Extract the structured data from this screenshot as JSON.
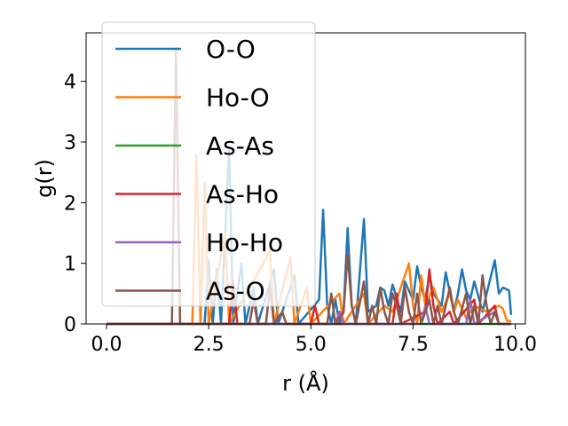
{
  "chart_data": {
    "type": "line",
    "title": "",
    "xlabel": "r (Å)",
    "ylabel": "g(r)",
    "xlim": [
      -0.5,
      10.25
    ],
    "ylim": [
      0,
      4.8
    ],
    "xticks": [
      0.0,
      2.5,
      5.0,
      7.5,
      10.0
    ],
    "xtick_labels": [
      "0.0",
      "2.5",
      "5.0",
      "7.5",
      "10.0"
    ],
    "yticks": [
      0,
      1,
      2,
      3,
      4
    ],
    "ytick_labels": [
      "0",
      "1",
      "2",
      "3",
      "4"
    ],
    "grid": false,
    "legend_position": "upper-left",
    "series": [
      {
        "name": "O-O",
        "color": "#1f77b4",
        "points": [
          [
            0.0,
            0
          ],
          [
            2.4,
            0
          ],
          [
            2.5,
            1.05
          ],
          [
            2.6,
            0
          ],
          [
            2.7,
            0.9
          ],
          [
            2.8,
            0
          ],
          [
            3.0,
            2.9
          ],
          [
            3.1,
            0
          ],
          [
            3.3,
            1.0
          ],
          [
            3.4,
            0
          ],
          [
            3.6,
            0.6
          ],
          [
            3.7,
            0
          ],
          [
            4.1,
            0.9
          ],
          [
            4.2,
            0
          ],
          [
            4.6,
            0.8
          ],
          [
            4.7,
            0
          ],
          [
            5.2,
            0.4
          ],
          [
            5.3,
            1.88
          ],
          [
            5.4,
            0.3
          ],
          [
            5.5,
            0
          ],
          [
            5.6,
            0.4
          ],
          [
            5.7,
            0
          ],
          [
            5.8,
            0.2
          ],
          [
            5.9,
            1.58
          ],
          [
            6.0,
            0.3
          ],
          [
            6.1,
            0
          ],
          [
            6.3,
            1.73
          ],
          [
            6.4,
            0.2
          ],
          [
            6.6,
            0.3
          ],
          [
            6.7,
            0.6
          ],
          [
            6.8,
            0.55
          ],
          [
            6.9,
            0.3
          ],
          [
            7.0,
            0.65
          ],
          [
            7.2,
            0.2
          ],
          [
            7.3,
            0.7
          ],
          [
            7.5,
            0.4
          ],
          [
            7.6,
            0.95
          ],
          [
            7.7,
            0.6
          ],
          [
            7.8,
            0.4
          ],
          [
            7.9,
            0.8
          ],
          [
            8.0,
            0.5
          ],
          [
            8.2,
            0.3
          ],
          [
            8.3,
            0.85
          ],
          [
            8.5,
            0.2
          ],
          [
            8.6,
            0.5
          ],
          [
            8.7,
            0.9
          ],
          [
            8.8,
            0.55
          ],
          [
            8.9,
            0.4
          ],
          [
            9.0,
            0.7
          ],
          [
            9.2,
            0.2
          ],
          [
            9.3,
            0.5
          ],
          [
            9.5,
            1.05
          ],
          [
            9.6,
            0.5
          ],
          [
            9.7,
            0.6
          ],
          [
            9.85,
            0.55
          ],
          [
            9.9,
            0.15
          ]
        ]
      },
      {
        "name": "Ho-O",
        "color": "#ff7f0e",
        "points": [
          [
            0.0,
            0
          ],
          [
            2.1,
            0
          ],
          [
            2.2,
            2.78
          ],
          [
            2.3,
            0
          ],
          [
            2.4,
            2.33
          ],
          [
            2.5,
            0
          ],
          [
            2.9,
            1.5
          ],
          [
            3.0,
            0
          ],
          [
            4.0,
            1.2
          ],
          [
            4.1,
            0
          ],
          [
            4.5,
            1.1
          ],
          [
            4.6,
            0
          ],
          [
            4.9,
            0.6
          ],
          [
            5.0,
            0
          ],
          [
            5.7,
            0.5
          ],
          [
            5.8,
            0
          ],
          [
            6.3,
            0.5
          ],
          [
            6.4,
            0
          ],
          [
            6.8,
            0.3
          ],
          [
            7.0,
            0.2
          ],
          [
            7.2,
            0.6
          ],
          [
            7.4,
            1.0
          ],
          [
            7.5,
            0.3
          ],
          [
            7.6,
            0
          ],
          [
            7.7,
            0.8
          ],
          [
            7.8,
            0.3
          ],
          [
            8.0,
            0.6
          ],
          [
            8.2,
            0.2
          ],
          [
            8.4,
            0.5
          ],
          [
            8.5,
            0.2
          ],
          [
            8.6,
            0.4
          ],
          [
            8.8,
            0.1
          ],
          [
            9.0,
            0.3
          ],
          [
            9.3,
            0.2
          ],
          [
            9.6,
            0.3
          ],
          [
            9.7,
            0.25
          ],
          [
            9.8,
            0.05
          ],
          [
            9.9,
            0.05
          ]
        ]
      },
      {
        "name": "As-As",
        "color": "#2ca02c",
        "points": [
          [
            0.0,
            0
          ],
          [
            9.9,
            0
          ]
        ]
      },
      {
        "name": "As-Ho",
        "color": "#d62728",
        "points": [
          [
            0.0,
            0
          ],
          [
            3.0,
            0
          ],
          [
            3.1,
            0.7
          ],
          [
            3.2,
            0
          ],
          [
            5.0,
            0
          ],
          [
            5.1,
            0.3
          ],
          [
            5.2,
            0
          ],
          [
            7.0,
            0
          ],
          [
            7.1,
            0.5
          ],
          [
            7.2,
            0
          ],
          [
            7.8,
            0.2
          ],
          [
            7.9,
            0.9
          ],
          [
            8.0,
            0.3
          ],
          [
            8.1,
            0
          ],
          [
            8.4,
            0.2
          ],
          [
            8.5,
            0
          ],
          [
            9.0,
            0.4
          ],
          [
            9.1,
            0
          ],
          [
            9.5,
            0.3
          ],
          [
            9.6,
            0
          ],
          [
            9.9,
            0
          ]
        ]
      },
      {
        "name": "Ho-Ho",
        "color": "#9467bd",
        "points": [
          [
            0.0,
            0
          ],
          [
            5.6,
            0
          ],
          [
            5.7,
            0.2
          ],
          [
            5.8,
            0
          ],
          [
            7.7,
            0
          ],
          [
            7.8,
            0.3
          ],
          [
            7.9,
            0
          ],
          [
            8.8,
            0
          ],
          [
            8.9,
            0.4
          ],
          [
            9.0,
            0
          ],
          [
            9.5,
            0.2
          ],
          [
            9.6,
            0
          ],
          [
            9.9,
            0
          ]
        ]
      },
      {
        "name": "As-O",
        "color": "#8c564b",
        "points": [
          [
            0.0,
            0
          ],
          [
            1.6,
            0
          ],
          [
            1.7,
            4.55
          ],
          [
            1.8,
            0
          ],
          [
            3.5,
            0
          ],
          [
            3.6,
            0.4
          ],
          [
            3.7,
            0
          ],
          [
            3.9,
            0
          ],
          [
            4.0,
            0.6
          ],
          [
            4.1,
            0
          ],
          [
            4.3,
            0.2
          ],
          [
            4.4,
            0
          ],
          [
            5.4,
            0
          ],
          [
            5.5,
            0.5
          ],
          [
            5.6,
            0
          ],
          [
            5.8,
            0.2
          ],
          [
            5.9,
            1.15
          ],
          [
            6.0,
            0.3
          ],
          [
            6.1,
            0
          ],
          [
            6.3,
            0.7
          ],
          [
            6.4,
            0
          ],
          [
            6.5,
            0.3
          ],
          [
            6.6,
            0
          ],
          [
            6.7,
            0.6
          ],
          [
            6.8,
            0.2
          ],
          [
            6.9,
            0
          ],
          [
            7.0,
            0.5
          ],
          [
            7.1,
            0.3
          ],
          [
            7.2,
            0
          ],
          [
            7.3,
            0.6
          ],
          [
            7.4,
            0.2
          ],
          [
            7.5,
            0
          ],
          [
            7.6,
            0.5
          ],
          [
            7.7,
            0
          ],
          [
            7.9,
            0.4
          ],
          [
            8.0,
            0
          ],
          [
            8.1,
            0.3
          ],
          [
            8.2,
            0
          ],
          [
            8.4,
            0.6
          ],
          [
            8.5,
            0.2
          ],
          [
            8.6,
            0
          ],
          [
            8.8,
            0.5
          ],
          [
            8.9,
            0
          ],
          [
            9.0,
            0.3
          ],
          [
            9.1,
            0
          ],
          [
            9.2,
            0.8
          ],
          [
            9.3,
            0.3
          ],
          [
            9.4,
            0
          ],
          [
            9.5,
            0.2
          ],
          [
            9.6,
            0
          ],
          [
            9.9,
            0
          ]
        ]
      }
    ]
  }
}
